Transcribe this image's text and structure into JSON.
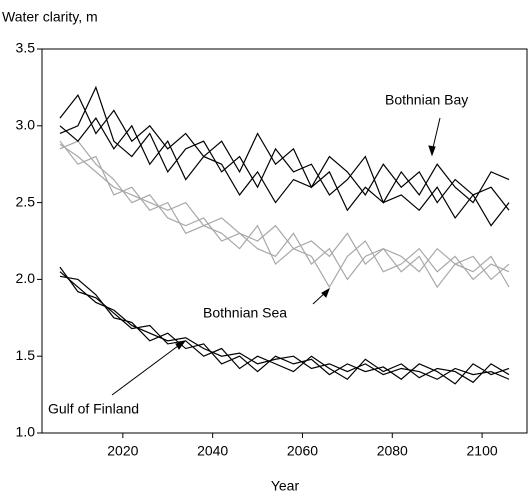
{
  "chart_data": {
    "type": "line",
    "title": "Water clarity,  m",
    "x_label": "Year",
    "x": [
      2006,
      2010,
      2014,
      2018,
      2022,
      2026,
      2030,
      2034,
      2038,
      2042,
      2046,
      2050,
      2054,
      2058,
      2062,
      2066,
      2070,
      2074,
      2078,
      2082,
      2086,
      2090,
      2094,
      2098,
      2102,
      2106
    ],
    "series": [
      {
        "color": "#000000",
        "values": [
          3.05,
          3.2,
          2.95,
          3.1,
          2.9,
          3.0,
          2.85,
          2.95,
          2.8,
          2.9,
          2.7,
          2.95,
          2.75,
          2.85,
          2.6,
          2.8,
          2.7,
          2.55,
          2.75,
          2.6,
          2.7,
          2.5,
          2.65,
          2.55,
          2.6,
          2.45
        ]
      },
      {
        "color": "#000000",
        "values": [
          2.95,
          3.0,
          3.25,
          2.9,
          2.8,
          2.95,
          2.7,
          2.85,
          2.9,
          2.7,
          2.8,
          2.6,
          2.85,
          2.7,
          2.75,
          2.55,
          2.65,
          2.8,
          2.5,
          2.7,
          2.55,
          2.75,
          2.6,
          2.5,
          2.7,
          2.65
        ]
      },
      {
        "color": "#000000",
        "values": [
          3.0,
          2.9,
          3.05,
          2.85,
          3.0,
          2.75,
          2.9,
          2.65,
          2.8,
          2.75,
          2.55,
          2.7,
          2.5,
          2.65,
          2.6,
          2.7,
          2.45,
          2.6,
          2.5,
          2.55,
          2.45,
          2.6,
          2.4,
          2.55,
          2.35,
          2.5
        ]
      },
      {
        "color": "#a8a8a8",
        "values": [
          2.88,
          2.8,
          2.7,
          2.6,
          2.55,
          2.5,
          2.45,
          2.5,
          2.35,
          2.4,
          2.3,
          2.25,
          2.35,
          2.2,
          2.25,
          2.15,
          2.3,
          2.1,
          2.2,
          2.15,
          2.05,
          2.2,
          2.1,
          2.15,
          2.0,
          2.1
        ]
      },
      {
        "color": "#a8a8a8",
        "values": [
          2.85,
          2.9,
          2.75,
          2.65,
          2.5,
          2.55,
          2.4,
          2.35,
          2.4,
          2.25,
          2.3,
          2.2,
          2.15,
          2.3,
          2.1,
          2.2,
          2.0,
          2.15,
          2.2,
          2.05,
          2.15,
          1.95,
          2.1,
          2.05,
          2.15,
          1.95
        ]
      },
      {
        "color": "#a8a8a8",
        "values": [
          2.9,
          2.75,
          2.8,
          2.55,
          2.6,
          2.45,
          2.5,
          2.3,
          2.35,
          2.3,
          2.2,
          2.35,
          2.1,
          2.2,
          2.15,
          1.95,
          2.15,
          2.25,
          2.05,
          2.1,
          2.2,
          2.05,
          2.15,
          2.0,
          2.1,
          2.05
        ]
      },
      {
        "color": "#000000",
        "values": [
          2.05,
          1.95,
          1.85,
          1.8,
          1.7,
          1.65,
          1.6,
          1.62,
          1.55,
          1.5,
          1.52,
          1.45,
          1.48,
          1.5,
          1.42,
          1.45,
          1.4,
          1.45,
          1.38,
          1.42,
          1.4,
          1.35,
          1.42,
          1.38,
          1.4,
          1.35
        ]
      },
      {
        "color": "#000000",
        "values": [
          2.02,
          2.0,
          1.9,
          1.75,
          1.72,
          1.6,
          1.65,
          1.55,
          1.58,
          1.45,
          1.5,
          1.4,
          1.5,
          1.45,
          1.48,
          1.38,
          1.45,
          1.4,
          1.43,
          1.35,
          1.45,
          1.4,
          1.32,
          1.45,
          1.38,
          1.42
        ]
      },
      {
        "color": "#000000",
        "values": [
          2.08,
          1.92,
          1.88,
          1.78,
          1.68,
          1.7,
          1.58,
          1.6,
          1.5,
          1.55,
          1.42,
          1.5,
          1.45,
          1.4,
          1.5,
          1.42,
          1.35,
          1.48,
          1.4,
          1.45,
          1.36,
          1.42,
          1.4,
          1.33,
          1.45,
          1.38
        ]
      }
    ],
    "annotations": [
      "Bothnian Bay",
      "Bothnian Sea",
      "Gulf of Finland"
    ],
    "xlim": [
      2002,
      2110
    ],
    "xticks": [
      2020,
      2040,
      2060,
      2080,
      2100
    ],
    "ylim": [
      1,
      3.5
    ],
    "yticks": [
      {
        "value": 1,
        "label": "1.0"
      },
      1.5,
      {
        "value": 2,
        "label": "2.0"
      },
      2.5,
      {
        "value": 3,
        "label": "3.0"
      },
      3.5
    ]
  }
}
